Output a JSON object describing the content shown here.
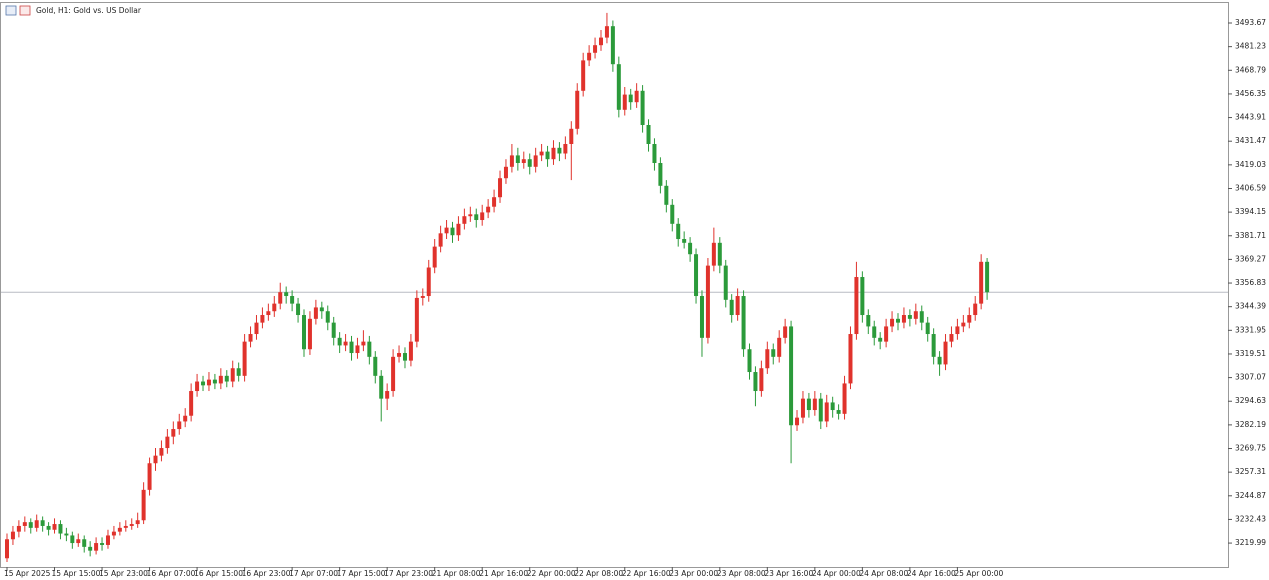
{
  "chart_data": {
    "type": "candlestick",
    "title": "Gold, H1: Gold vs. US Dollar",
    "up_color": "#e0322c",
    "down_color": "#2b9a3a",
    "price_line": 3352,
    "grid": false,
    "ylim": [
      3207.4,
      3504.2
    ],
    "yticks": [
      3219.99,
      3232.43,
      3244.87,
      3257.31,
      3269.75,
      3282.19,
      3294.63,
      3307.07,
      3319.51,
      3331.95,
      3344.39,
      3356.83,
      3369.27,
      3381.71,
      3394.15,
      3406.59,
      3419.03,
      3431.47,
      3443.91,
      3456.35,
      3468.79,
      3481.23,
      3493.67
    ],
    "categories": [
      "15 Apr 2025",
      null,
      null,
      null,
      null,
      null,
      null,
      null,
      "15 Apr 15:00",
      null,
      null,
      null,
      null,
      null,
      null,
      null,
      "15 Apr 23:00",
      null,
      null,
      null,
      null,
      null,
      null,
      null,
      "16 Apr 07:00",
      null,
      null,
      null,
      null,
      null,
      null,
      null,
      "16 Apr 15:00",
      null,
      null,
      null,
      null,
      null,
      null,
      null,
      "16 Apr 23:00",
      null,
      null,
      null,
      null,
      null,
      null,
      null,
      "17 Apr 07:00",
      null,
      null,
      null,
      null,
      null,
      null,
      null,
      "17 Apr 15:00",
      null,
      null,
      null,
      null,
      null,
      null,
      null,
      "17 Apr 23:00",
      null,
      null,
      null,
      null,
      null,
      null,
      null,
      "21 Apr 08:00",
      null,
      null,
      null,
      null,
      null,
      null,
      null,
      "21 Apr 16:00",
      null,
      null,
      null,
      null,
      null,
      null,
      null,
      "22 Apr 00:00",
      null,
      null,
      null,
      null,
      null,
      null,
      null,
      "22 Apr 08:00",
      null,
      null,
      null,
      null,
      null,
      null,
      null,
      "22 Apr 16:00",
      null,
      null,
      null,
      null,
      null,
      null,
      null,
      "23 Apr 00:00",
      null,
      null,
      null,
      null,
      null,
      null,
      null,
      "23 Apr 08:00",
      null,
      null,
      null,
      null,
      null,
      null,
      null,
      "23 Apr 16:00",
      null,
      null,
      null,
      null,
      null,
      null,
      null,
      "24 Apr 00:00",
      null,
      null,
      null,
      null,
      null,
      null,
      null,
      "24 Apr 08:00",
      null,
      null,
      null,
      null,
      null,
      null,
      null,
      "24 Apr 16:00",
      null,
      null,
      null,
      null,
      null,
      null,
      null,
      "25 Apr 00:00",
      null,
      null,
      null,
      null,
      null
    ],
    "ohlc": [
      [
        3212,
        3225,
        3210,
        3222
      ],
      [
        3222,
        3229,
        3219,
        3226
      ],
      [
        3226,
        3232,
        3223,
        3229
      ],
      [
        3229,
        3234,
        3226,
        3231
      ],
      [
        3231,
        3233,
        3225,
        3228
      ],
      [
        3228,
        3235,
        3226,
        3232
      ],
      [
        3232,
        3234,
        3226,
        3229
      ],
      [
        3229,
        3231,
        3224,
        3227
      ],
      [
        3227,
        3233,
        3225,
        3230
      ],
      [
        3230,
        3232,
        3222,
        3225
      ],
      [
        3225,
        3228,
        3221,
        3224
      ],
      [
        3224,
        3226,
        3217,
        3220
      ],
      [
        3220,
        3225,
        3218,
        3222
      ],
      [
        3222,
        3224,
        3215,
        3218
      ],
      [
        3218,
        3221,
        3213,
        3216
      ],
      [
        3216,
        3223,
        3214,
        3220
      ],
      [
        3220,
        3223,
        3216,
        3219
      ],
      [
        3219,
        3227,
        3217,
        3224
      ],
      [
        3224,
        3229,
        3222,
        3226
      ],
      [
        3226,
        3231,
        3224,
        3228
      ],
      [
        3228,
        3232,
        3226,
        3229
      ],
      [
        3229,
        3233,
        3227,
        3230
      ],
      [
        3230,
        3236,
        3228,
        3232
      ],
      [
        3232,
        3252,
        3230,
        3248
      ],
      [
        3248,
        3265,
        3245,
        3262
      ],
      [
        3262,
        3270,
        3258,
        3266
      ],
      [
        3266,
        3274,
        3263,
        3270
      ],
      [
        3270,
        3280,
        3267,
        3276
      ],
      [
        3276,
        3284,
        3272,
        3280
      ],
      [
        3280,
        3288,
        3277,
        3284
      ],
      [
        3284,
        3291,
        3281,
        3287
      ],
      [
        3287,
        3304,
        3284,
        3300
      ],
      [
        3300,
        3309,
        3297,
        3305
      ],
      [
        3305,
        3308,
        3300,
        3303
      ],
      [
        3303,
        3310,
        3300,
        3306
      ],
      [
        3306,
        3309,
        3301,
        3304
      ],
      [
        3304,
        3312,
        3301,
        3308
      ],
      [
        3308,
        3311,
        3302,
        3305
      ],
      [
        3305,
        3316,
        3302,
        3312
      ],
      [
        3312,
        3315,
        3305,
        3308
      ],
      [
        3308,
        3330,
        3305,
        3326
      ],
      [
        3326,
        3334,
        3323,
        3330
      ],
      [
        3330,
        3340,
        3327,
        3336
      ],
      [
        3336,
        3344,
        3333,
        3340
      ],
      [
        3340,
        3346,
        3337,
        3342
      ],
      [
        3342,
        3350,
        3339,
        3346
      ],
      [
        3346,
        3357,
        3343,
        3352
      ],
      [
        3352,
        3355,
        3346,
        3350
      ],
      [
        3350,
        3353,
        3342,
        3346
      ],
      [
        3346,
        3349,
        3336,
        3340
      ],
      [
        3340,
        3343,
        3318,
        3322
      ],
      [
        3322,
        3342,
        3319,
        3338
      ],
      [
        3338,
        3348,
        3335,
        3344
      ],
      [
        3344,
        3347,
        3338,
        3342
      ],
      [
        3342,
        3345,
        3332,
        3336
      ],
      [
        3336,
        3339,
        3324,
        3328
      ],
      [
        3328,
        3331,
        3320,
        3324
      ],
      [
        3324,
        3330,
        3321,
        3326
      ],
      [
        3326,
        3329,
        3316,
        3320
      ],
      [
        3320,
        3328,
        3317,
        3324
      ],
      [
        3324,
        3332,
        3321,
        3326
      ],
      [
        3326,
        3329,
        3314,
        3318
      ],
      [
        3318,
        3321,
        3304,
        3308
      ],
      [
        3308,
        3311,
        3284,
        3296
      ],
      [
        3296,
        3304,
        3290,
        3300
      ],
      [
        3300,
        3322,
        3297,
        3318
      ],
      [
        3318,
        3324,
        3315,
        3320
      ],
      [
        3320,
        3323,
        3312,
        3316
      ],
      [
        3316,
        3330,
        3313,
        3326
      ],
      [
        3326,
        3353,
        3323,
        3349
      ],
      [
        3349,
        3354,
        3345,
        3350
      ],
      [
        3350,
        3369,
        3347,
        3365
      ],
      [
        3365,
        3380,
        3362,
        3376
      ],
      [
        3376,
        3387,
        3373,
        3383
      ],
      [
        3383,
        3390,
        3380,
        3386
      ],
      [
        3386,
        3389,
        3378,
        3382
      ],
      [
        3382,
        3392,
        3379,
        3388
      ],
      [
        3388,
        3396,
        3385,
        3392
      ],
      [
        3392,
        3397,
        3389,
        3393
      ],
      [
        3393,
        3396,
        3386,
        3390
      ],
      [
        3390,
        3398,
        3387,
        3394
      ],
      [
        3394,
        3401,
        3391,
        3397
      ],
      [
        3397,
        3406,
        3394,
        3402
      ],
      [
        3402,
        3416,
        3399,
        3412
      ],
      [
        3412,
        3422,
        3409,
        3418
      ],
      [
        3418,
        3430,
        3415,
        3424
      ],
      [
        3424,
        3428,
        3416,
        3420
      ],
      [
        3420,
        3426,
        3417,
        3422
      ],
      [
        3422,
        3425,
        3414,
        3418
      ],
      [
        3418,
        3428,
        3415,
        3424
      ],
      [
        3424,
        3430,
        3421,
        3426
      ],
      [
        3426,
        3429,
        3418,
        3422
      ],
      [
        3422,
        3432,
        3419,
        3428
      ],
      [
        3428,
        3431,
        3421,
        3425
      ],
      [
        3425,
        3434,
        3422,
        3430
      ],
      [
        3430,
        3442,
        3411,
        3438
      ],
      [
        3438,
        3462,
        3435,
        3458
      ],
      [
        3458,
        3478,
        3455,
        3474
      ],
      [
        3474,
        3482,
        3471,
        3478
      ],
      [
        3478,
        3486,
        3475,
        3482
      ],
      [
        3482,
        3490,
        3479,
        3486
      ],
      [
        3486,
        3499,
        3483,
        3492
      ],
      [
        3492,
        3495,
        3468,
        3472
      ],
      [
        3472,
        3476,
        3444,
        3448
      ],
      [
        3448,
        3460,
        3445,
        3456
      ],
      [
        3456,
        3459,
        3448,
        3452
      ],
      [
        3452,
        3462,
        3449,
        3458
      ],
      [
        3458,
        3461,
        3436,
        3440
      ],
      [
        3440,
        3443,
        3426,
        3430
      ],
      [
        3430,
        3433,
        3416,
        3420
      ],
      [
        3420,
        3423,
        3404,
        3408
      ],
      [
        3408,
        3411,
        3394,
        3398
      ],
      [
        3398,
        3401,
        3384,
        3388
      ],
      [
        3388,
        3391,
        3376,
        3380
      ],
      [
        3380,
        3384,
        3375,
        3378
      ],
      [
        3378,
        3381,
        3368,
        3372
      ],
      [
        3372,
        3375,
        3346,
        3350
      ],
      [
        3350,
        3353,
        3318,
        3328
      ],
      [
        3328,
        3370,
        3325,
        3366
      ],
      [
        3366,
        3386,
        3363,
        3378
      ],
      [
        3378,
        3381,
        3362,
        3366
      ],
      [
        3366,
        3369,
        3344,
        3348
      ],
      [
        3348,
        3351,
        3336,
        3340
      ],
      [
        3340,
        3354,
        3337,
        3350
      ],
      [
        3350,
        3353,
        3318,
        3322
      ],
      [
        3322,
        3325,
        3306,
        3310
      ],
      [
        3310,
        3313,
        3292,
        3300
      ],
      [
        3300,
        3316,
        3297,
        3312
      ],
      [
        3312,
        3326,
        3309,
        3322
      ],
      [
        3322,
        3325,
        3314,
        3318
      ],
      [
        3318,
        3332,
        3315,
        3328
      ],
      [
        3328,
        3338,
        3325,
        3334
      ],
      [
        3334,
        3337,
        3262,
        3282
      ],
      [
        3282,
        3290,
        3279,
        3286
      ],
      [
        3286,
        3300,
        3283,
        3296
      ],
      [
        3296,
        3299,
        3286,
        3290
      ],
      [
        3290,
        3300,
        3287,
        3296
      ],
      [
        3296,
        3299,
        3280,
        3284
      ],
      [
        3284,
        3298,
        3281,
        3294
      ],
      [
        3294,
        3297,
        3286,
        3290
      ],
      [
        3290,
        3293,
        3285,
        3288
      ],
      [
        3288,
        3308,
        3285,
        3304
      ],
      [
        3304,
        3334,
        3301,
        3330
      ],
      [
        3330,
        3368,
        3327,
        3360
      ],
      [
        3360,
        3363,
        3336,
        3340
      ],
      [
        3340,
        3343,
        3330,
        3334
      ],
      [
        3334,
        3337,
        3324,
        3328
      ],
      [
        3328,
        3331,
        3322,
        3326
      ],
      [
        3326,
        3338,
        3323,
        3334
      ],
      [
        3334,
        3342,
        3331,
        3338
      ],
      [
        3338,
        3341,
        3332,
        3336
      ],
      [
        3336,
        3344,
        3333,
        3340
      ],
      [
        3340,
        3343,
        3334,
        3338
      ],
      [
        3338,
        3346,
        3335,
        3342
      ],
      [
        3342,
        3345,
        3332,
        3336
      ],
      [
        3336,
        3339,
        3326,
        3330
      ],
      [
        3330,
        3333,
        3314,
        3318
      ],
      [
        3318,
        3321,
        3308,
        3314
      ],
      [
        3314,
        3330,
        3311,
        3326
      ],
      [
        3326,
        3334,
        3323,
        3330
      ],
      [
        3330,
        3338,
        3327,
        3334
      ],
      [
        3334,
        3340,
        3331,
        3336
      ],
      [
        3336,
        3344,
        3333,
        3340
      ],
      [
        3340,
        3350,
        3337,
        3346
      ],
      [
        3346,
        3372,
        3343,
        3368
      ],
      [
        3368,
        3370,
        3348,
        3352
      ]
    ]
  }
}
